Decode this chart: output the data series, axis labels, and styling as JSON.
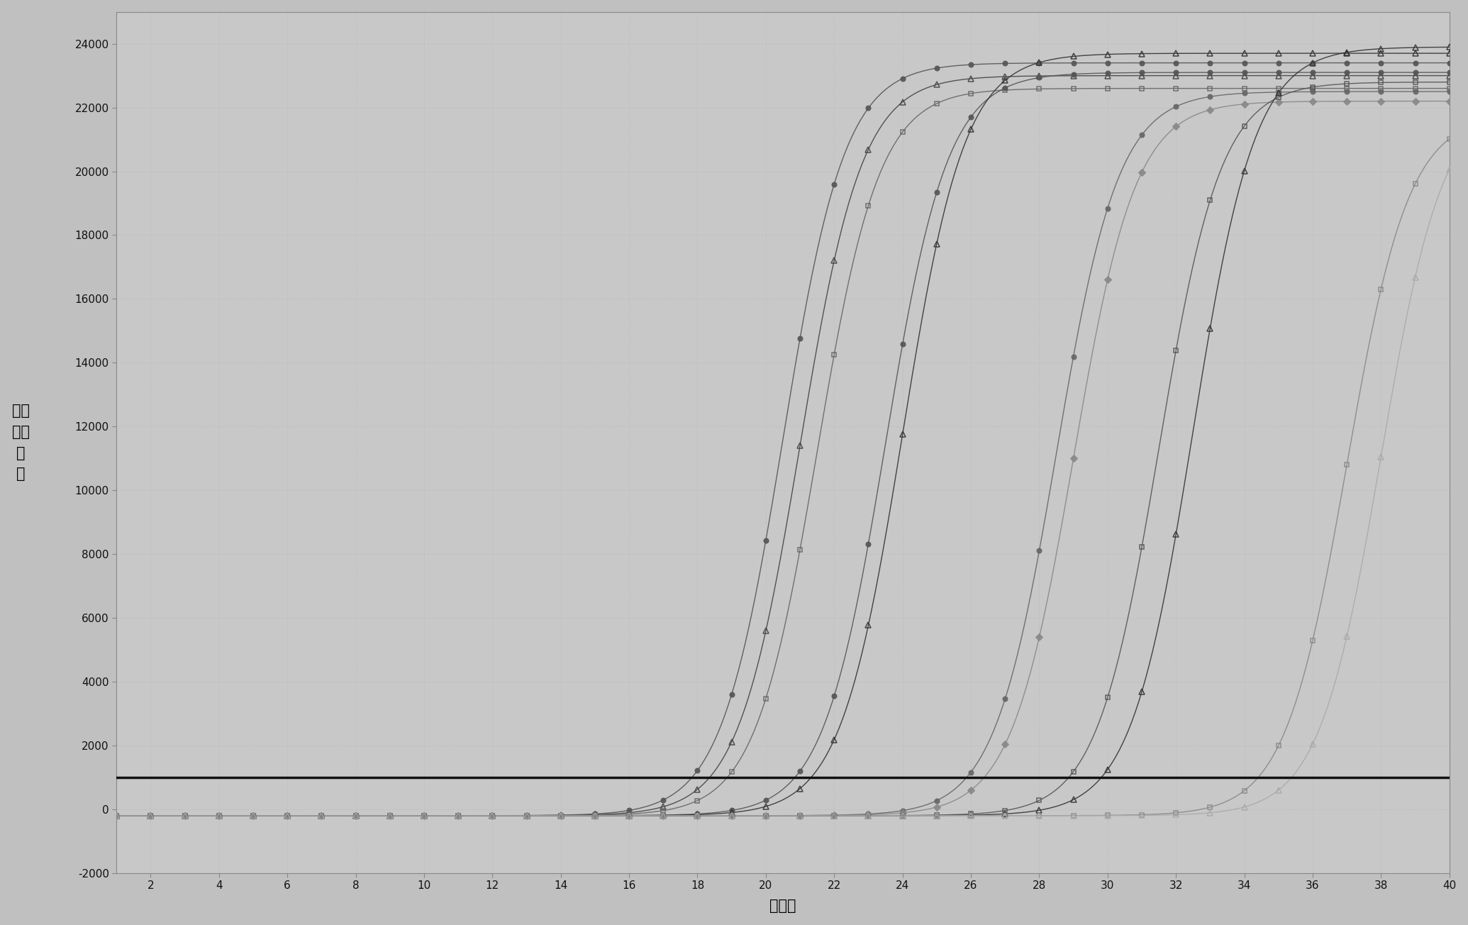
{
  "xlabel": "循环数",
  "ylabel": "相对\n荚光\n强\n度",
  "xlim": [
    1,
    40
  ],
  "ylim": [
    -2000,
    25000
  ],
  "yticks": [
    -2000,
    0,
    2000,
    4000,
    6000,
    8000,
    10000,
    12000,
    14000,
    16000,
    18000,
    20000,
    22000,
    24000
  ],
  "xticks": [
    2,
    4,
    6,
    8,
    10,
    12,
    14,
    16,
    18,
    20,
    22,
    24,
    26,
    28,
    30,
    32,
    34,
    36,
    38,
    40
  ],
  "threshold": 1000,
  "threshold_color": "#111111",
  "background_color": "#c8c8c8",
  "plot_bg_color": "#c8c8c8",
  "grid_color": "#e8e8e8",
  "curves": [
    {
      "ct": 20.5,
      "plateau": 23400,
      "baseline": -200,
      "k": 1.1,
      "color": "#555555",
      "marker": "o",
      "fillstyle": "full",
      "ms": 5
    },
    {
      "ct": 21.0,
      "plateau": 23000,
      "baseline": -200,
      "k": 1.1,
      "color": "#444444",
      "marker": "^",
      "fillstyle": "none",
      "ms": 6
    },
    {
      "ct": 21.5,
      "plateau": 22600,
      "baseline": -200,
      "k": 1.1,
      "color": "#666666",
      "marker": "s",
      "fillstyle": "none",
      "ms": 5
    },
    {
      "ct": 23.5,
      "plateau": 23100,
      "baseline": -200,
      "k": 1.1,
      "color": "#555555",
      "marker": "o",
      "fillstyle": "full",
      "ms": 5
    },
    {
      "ct": 24.0,
      "plateau": 23700,
      "baseline": -200,
      "k": 1.1,
      "color": "#333333",
      "marker": "^",
      "fillstyle": "none",
      "ms": 6
    },
    {
      "ct": 28.5,
      "plateau": 22500,
      "baseline": -200,
      "k": 1.1,
      "color": "#666666",
      "marker": "o",
      "fillstyle": "full",
      "ms": 5
    },
    {
      "ct": 29.0,
      "plateau": 22200,
      "baseline": -200,
      "k": 1.1,
      "color": "#888888",
      "marker": "D",
      "fillstyle": "full",
      "ms": 5
    },
    {
      "ct": 31.5,
      "plateau": 22800,
      "baseline": -200,
      "k": 1.1,
      "color": "#555555",
      "marker": "s",
      "fillstyle": "none",
      "ms": 5
    },
    {
      "ct": 32.5,
      "plateau": 23900,
      "baseline": -200,
      "k": 1.1,
      "color": "#333333",
      "marker": "^",
      "fillstyle": "none",
      "ms": 6
    },
    {
      "ct": 37.0,
      "plateau": 21800,
      "baseline": -200,
      "k": 1.1,
      "color": "#888888",
      "marker": "s",
      "fillstyle": "none",
      "ms": 5
    },
    {
      "ct": 38.0,
      "plateau": 22300,
      "baseline": -200,
      "k": 1.1,
      "color": "#aaaaaa",
      "marker": "^",
      "fillstyle": "none",
      "ms": 6
    }
  ]
}
